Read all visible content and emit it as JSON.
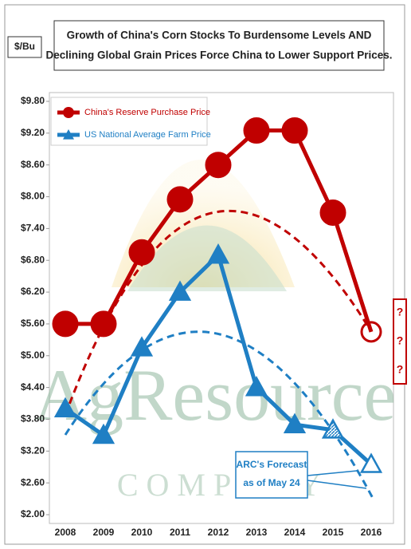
{
  "chart_data": {
    "type": "line",
    "title": [
      "Growth of China's Corn Stocks To Burdensome Levels AND",
      "Declining Global Grain Prices Force China to Lower Support Prices."
    ],
    "y_label": "$/Bu",
    "categories": [
      "2008",
      "2009",
      "2010",
      "2011",
      "2012",
      "2013",
      "2014",
      "2015",
      "2016"
    ],
    "series": [
      {
        "name": "China's Reserve Purchase Price",
        "color": "#c00000",
        "marker": "circle",
        "values": [
          5.6,
          5.6,
          6.95,
          7.95,
          8.6,
          9.25,
          9.25,
          7.7,
          5.45
        ]
      },
      {
        "name": "US National Average Farm Price",
        "color": "#1f7fc4",
        "marker": "triangle",
        "values": [
          4.0,
          3.5,
          5.15,
          6.2,
          6.9,
          4.4,
          3.7,
          3.6,
          2.95
        ]
      }
    ],
    "ylim": [
      2.0,
      9.8
    ],
    "yticks": [
      {
        "value": 2.0,
        "label": "$2.00"
      },
      {
        "value": 2.6,
        "label": "$2.60"
      },
      {
        "value": 3.2,
        "label": "$3.20"
      },
      {
        "value": 3.8,
        "label": "$3.80"
      },
      {
        "value": 4.4,
        "label": "$4.40"
      },
      {
        "value": 5.0,
        "label": "$5.00"
      },
      {
        "value": 5.6,
        "label": "$5.60"
      },
      {
        "value": 6.2,
        "label": "$6.20"
      },
      {
        "value": 6.8,
        "label": "$6.80"
      },
      {
        "value": 7.4,
        "label": "$7.40"
      },
      {
        "value": 8.0,
        "label": "$8.00"
      },
      {
        "value": 8.6,
        "label": "$8.60"
      },
      {
        "value": 9.2,
        "label": "$9.20"
      },
      {
        "value": 9.8,
        "label": "$9.80"
      }
    ],
    "annotation": [
      "ARC's Forecast",
      "as of May 24"
    ],
    "side_note": [
      "?",
      "?",
      "?"
    ],
    "watermark": [
      "AgResource",
      "COMPANY"
    ]
  }
}
